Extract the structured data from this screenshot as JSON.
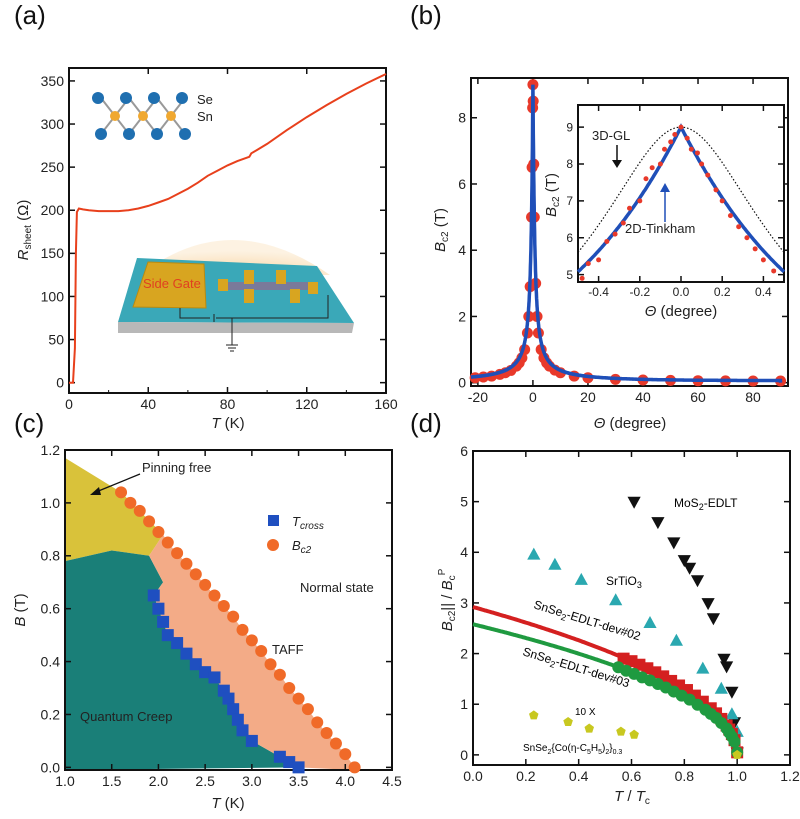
{
  "chart_data": [
    {
      "id": "a",
      "panel_label": "(a)",
      "type": "line",
      "xlabel": {
        "main": "T",
        "unit": " (K)"
      },
      "ylabel": {
        "main": "R",
        "sub": "sheet",
        "unit": " (Ω)"
      },
      "xlim": [
        0,
        160
      ],
      "ylim": [
        -12,
        365
      ],
      "xticks": [
        0,
        40,
        80,
        120,
        160
      ],
      "xtick_labels": [
        "0",
        "40",
        "80",
        "120",
        "160"
      ],
      "yticks": [
        0,
        50,
        100,
        150,
        200,
        250,
        300,
        350
      ],
      "ytick_labels": [
        "0",
        "50",
        "100",
        "150",
        "200",
        "250",
        "300",
        "350"
      ],
      "series": [
        {
          "name": "R_sheet",
          "color": "#e8401c",
          "x": [
            0,
            2,
            3,
            3.5,
            4,
            5,
            7,
            10,
            15,
            20,
            25,
            30,
            35,
            40,
            45,
            50,
            55,
            60,
            65,
            70,
            75,
            80,
            85,
            91,
            91.5,
            92,
            95,
            100,
            110,
            120,
            130,
            140,
            150,
            160
          ],
          "y": [
            0,
            0,
            40,
            150,
            198,
            202,
            201,
            200,
            199,
            199,
            199,
            200,
            202,
            205,
            209,
            213,
            219,
            225,
            232,
            240,
            246,
            252,
            257,
            262,
            264,
            266,
            270,
            277,
            293,
            308,
            322,
            335,
            347,
            358
          ]
        }
      ],
      "insets": {
        "atom_labels": [
          "Se",
          "Sn"
        ],
        "device_label": "Side Gate"
      },
      "colors": {
        "se": "#1f6fb0",
        "sn": "#f0a830",
        "gate": "#d8a520",
        "substrate": "#3aa8b8"
      }
    },
    {
      "id": "b",
      "panel_label": "(b)",
      "type": "scatter",
      "xlabel": {
        "main": "Θ",
        "unit": " (degree)"
      },
      "ylabel": {
        "main": "B",
        "sub": "c2",
        "unit": " (T)"
      },
      "xlim": [
        -22.5,
        92.7
      ],
      "ylim": [
        -0.1,
        9.2
      ],
      "xticks": [
        -20,
        0,
        20,
        40,
        60,
        80
      ],
      "xtick_labels": [
        "-20",
        "0",
        "20",
        "40",
        "60",
        "80"
      ],
      "yticks": [
        0,
        2,
        4,
        6,
        8
      ],
      "ytick_labels": [
        "0",
        "2",
        "4",
        "6",
        "8"
      ],
      "points": {
        "color": "#e8392a",
        "x": [
          -21,
          -18,
          -15,
          -12,
          -10,
          -8,
          -6,
          -5,
          -4,
          -3,
          -2,
          -1.5,
          -1,
          -0.5,
          -0.3,
          -0.1,
          0,
          0.1,
          0.3,
          0.5,
          1,
          1.5,
          2,
          3,
          4,
          5,
          6,
          8,
          10,
          15,
          20,
          30,
          40,
          50,
          60,
          70,
          80,
          90
        ],
        "y": [
          0.15,
          0.17,
          0.2,
          0.25,
          0.3,
          0.37,
          0.5,
          0.6,
          0.75,
          1.0,
          1.5,
          2,
          2.9,
          5,
          6.5,
          8.3,
          9,
          8.5,
          6.6,
          5,
          3,
          2,
          1.5,
          1,
          0.75,
          0.6,
          0.5,
          0.38,
          0.3,
          0.2,
          0.15,
          0.1,
          0.08,
          0.07,
          0.06,
          0.055,
          0.05,
          0.05
        ]
      },
      "fit": {
        "model": "2D-Tinkham",
        "B_parallel": 9.0,
        "B_perp": 0.065,
        "color": "#1f4fb8"
      },
      "inset": {
        "xlabel": {
          "main": "Θ",
          "unit": " (degree)"
        },
        "ylabel": {
          "main": "B",
          "sub": "c2",
          "unit": " (T)"
        },
        "xlim": [
          -0.5,
          0.5
        ],
        "ylim": [
          4.8,
          9.6
        ],
        "xticks": [
          -0.4,
          -0.2,
          0,
          0.2,
          0.4
        ],
        "xtick_labels": [
          "-0.4",
          "-0.2",
          "0.0",
          "0.2",
          "0.4"
        ],
        "yticks": [
          5,
          6,
          7,
          8,
          9
        ],
        "ytick_labels": [
          "5",
          "6",
          "7",
          "8",
          "9"
        ],
        "points": {
          "x": [
            -0.48,
            -0.45,
            -0.4,
            -0.36,
            -0.32,
            -0.28,
            -0.25,
            -0.2,
            -0.17,
            -0.14,
            -0.1,
            -0.08,
            -0.05,
            -0.03,
            0,
            0.03,
            0.05,
            0.08,
            0.1,
            0.13,
            0.17,
            0.2,
            0.24,
            0.28,
            0.32,
            0.36,
            0.4,
            0.45
          ],
          "y": [
            4.9,
            5.3,
            5.4,
            5.9,
            6.1,
            6.4,
            6.8,
            7.0,
            7.6,
            7.9,
            8.0,
            8.4,
            8.6,
            8.8,
            9.0,
            8.7,
            8.4,
            8.3,
            8.0,
            7.7,
            7.3,
            7.0,
            6.6,
            6.3,
            6.0,
            5.7,
            5.4,
            5.1
          ]
        },
        "annotations": [
          "3D-GL",
          "2D-Tinkham"
        ],
        "gl_fit": {
          "model": "3D-GL",
          "B_parallel": 9.0,
          "B_perp": 0.0625
        }
      }
    },
    {
      "id": "c",
      "panel_label": "(c)",
      "type": "scatter",
      "xlabel": {
        "main": "T",
        "unit": " (K)"
      },
      "ylabel": {
        "main": "B",
        "unit": " (T)"
      },
      "xlim": [
        1.0,
        4.5
      ],
      "ylim": [
        -0.01,
        1.2
      ],
      "xticks": [
        1.0,
        1.5,
        2.0,
        2.5,
        3.0,
        3.5,
        4.0,
        4.5
      ],
      "xtick_labels": [
        "1.0",
        "1.5",
        "2.0",
        "2.5",
        "3.0",
        "3.5",
        "4.0",
        "4.5"
      ],
      "yticks": [
        0,
        0.2,
        0.4,
        0.6,
        0.8,
        1.0,
        1.2
      ],
      "ytick_labels": [
        "0.0",
        "0.2",
        "0.4",
        "0.6",
        "0.8",
        "1.0",
        "1.2"
      ],
      "series": [
        {
          "name": "T",
          "sub": "cross",
          "marker": "square",
          "color": "#1f4fc0",
          "x": [
            1.95,
            2.0,
            2.05,
            2.1,
            2.2,
            2.3,
            2.4,
            2.5,
            2.6,
            2.7,
            2.75,
            2.8,
            2.85,
            2.9,
            3.0,
            3.3,
            3.4,
            3.5
          ],
          "y": [
            0.65,
            0.6,
            0.55,
            0.5,
            0.47,
            0.43,
            0.39,
            0.36,
            0.34,
            0.29,
            0.26,
            0.22,
            0.18,
            0.14,
            0.1,
            0.04,
            0.02,
            0.0
          ]
        },
        {
          "name": "B",
          "sub": "c2",
          "marker": "circle",
          "color": "#f06a28",
          "x": [
            1.6,
            1.7,
            1.8,
            1.9,
            2.0,
            2.1,
            2.2,
            2.3,
            2.4,
            2.5,
            2.6,
            2.7,
            2.8,
            2.9,
            3.0,
            3.1,
            3.2,
            3.3,
            3.4,
            3.5,
            3.6,
            3.7,
            3.8,
            3.9,
            4.0,
            4.1
          ],
          "y": [
            1.04,
            1.0,
            0.97,
            0.93,
            0.89,
            0.85,
            0.81,
            0.77,
            0.73,
            0.69,
            0.65,
            0.61,
            0.57,
            0.52,
            0.48,
            0.44,
            0.39,
            0.35,
            0.3,
            0.26,
            0.22,
            0.17,
            0.13,
            0.09,
            0.05,
            0.0
          ]
        }
      ],
      "regions": [
        "Pinning free",
        "Normal state",
        "TAFF",
        "Quantum Creep"
      ],
      "region_colors": {
        "pinning_free": "#d9c23a",
        "quantum_creep": "#1a7f78",
        "taff": "#f2a27a"
      }
    },
    {
      "id": "d",
      "panel_label": "(d)",
      "type": "scatter",
      "xlabel": {
        "main": "T",
        "sep": " / ",
        "main2": "T",
        "sub2": "c"
      },
      "ylabel": {
        "main": "B",
        "sub": "c2",
        "sup": "||",
        "sep": " / ",
        "main2": "B",
        "sub2": "c",
        "sup2": "P"
      },
      "xlim": [
        0,
        1.2
      ],
      "ylim": [
        -0.2,
        6
      ],
      "xticks": [
        0,
        0.2,
        0.4,
        0.6,
        0.8,
        1.0,
        1.2
      ],
      "xtick_labels": [
        "0.0",
        "0.2",
        "0.4",
        "0.6",
        "0.8",
        "1.0",
        "1.2"
      ],
      "yticks": [
        0,
        1,
        2,
        3,
        4,
        5,
        6
      ],
      "ytick_labels": [
        "0",
        "1",
        "2",
        "3",
        "4",
        "5",
        "6"
      ],
      "series": [
        {
          "name": "MoS2-EDLT",
          "label": "MoS",
          "label_sub": "2",
          "label_rest": "-EDLT",
          "marker": "triangle-down",
          "color": "#111111",
          "x": [
            0.61,
            0.7,
            0.76,
            0.8,
            0.82,
            0.85,
            0.89,
            0.91,
            0.95,
            0.96,
            0.98,
            0.99,
            1.0
          ],
          "y": [
            5.0,
            4.6,
            4.2,
            3.85,
            3.7,
            3.45,
            3.0,
            2.7,
            1.9,
            1.75,
            1.25,
            0.65,
            0.05
          ]
        },
        {
          "name": "SrTiO3",
          "label": "SrTiO",
          "label_sub": "3",
          "label_rest": "",
          "marker": "triangle-up",
          "color": "#2aa8b0",
          "x": [
            0.23,
            0.31,
            0.41,
            0.54,
            0.67,
            0.77,
            0.87,
            0.94,
            0.98,
            1.0
          ],
          "y": [
            3.95,
            3.75,
            3.45,
            3.05,
            2.6,
            2.25,
            1.7,
            1.3,
            0.8,
            0.45
          ]
        },
        {
          "name": "SnSe2-EDLT-dev#02",
          "label": "SnSe",
          "label_sub": "2",
          "label_rest": "-EDLT-dev#02",
          "marker": "square",
          "color": "#d42020",
          "fit_amplitude": 2.92,
          "x": [
            0.57,
            0.6,
            0.63,
            0.66,
            0.69,
            0.72,
            0.75,
            0.78,
            0.81,
            0.84,
            0.87,
            0.9,
            0.92,
            0.94,
            0.96,
            0.97,
            0.98,
            0.99,
            1.0
          ],
          "y": [
            1.9,
            1.85,
            1.78,
            1.71,
            1.63,
            1.55,
            1.46,
            1.37,
            1.28,
            1.17,
            1.05,
            0.92,
            0.82,
            0.71,
            0.58,
            0.5,
            0.41,
            0.29,
            0.05
          ]
        },
        {
          "name": "SnSe2-EDLT-dev#03",
          "label": "SnSe",
          "label_sub": "2",
          "label_rest": "-EDLT-dev#03",
          "marker": "circle",
          "color": "#1f9a40",
          "fit_amplitude": 2.58,
          "x": [
            0.55,
            0.58,
            0.61,
            0.64,
            0.67,
            0.7,
            0.73,
            0.76,
            0.79,
            0.82,
            0.85,
            0.88,
            0.9,
            0.92,
            0.94,
            0.96,
            0.97,
            0.98,
            0.99,
            1.0
          ],
          "y": [
            1.73,
            1.66,
            1.6,
            1.53,
            1.47,
            1.4,
            1.33,
            1.25,
            1.17,
            1.09,
            0.99,
            0.89,
            0.81,
            0.73,
            0.63,
            0.52,
            0.44,
            0.36,
            0.26,
            0.05
          ]
        },
        {
          "name": "SnSe2{Co(η-C5H5)2}0.3",
          "marker": "pentagon",
          "color": "#c8c820",
          "x": [
            0.23,
            0.36,
            0.44,
            0.56,
            0.61,
            1.0
          ],
          "y": [
            0.78,
            0.65,
            0.52,
            0.46,
            0.4,
            0.0
          ]
        }
      ],
      "annotations": {
        "scale": "10 X",
        "compound": [
          "SnSe",
          "2",
          "{Co(η-C",
          "5",
          "H",
          "5",
          ")",
          "2",
          "}",
          "0.3"
        ]
      }
    }
  ]
}
